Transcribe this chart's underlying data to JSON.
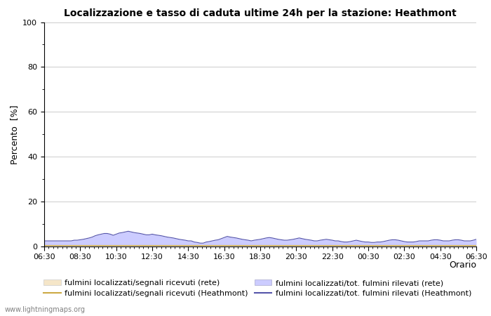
{
  "title": "Localizzazione e tasso di caduta ultime 24h per la stazione: Heathmont",
  "ylabel": "Percento  [%]",
  "xlabel": "Orario",
  "ylim": [
    0,
    100
  ],
  "yticks": [
    0,
    20,
    40,
    60,
    80,
    100
  ],
  "yticks_minor": [
    10,
    30,
    50,
    70,
    90
  ],
  "x_labels": [
    "06:30",
    "08:30",
    "10:30",
    "12:30",
    "14:30",
    "16:30",
    "18:30",
    "20:30",
    "22:30",
    "00:30",
    "02:30",
    "04:30",
    "06:30"
  ],
  "n_points": 145,
  "fill_rete_color": "#f5e6c8",
  "fill_heathmont_color": "#ccccff",
  "line_rete_color": "#ccaa44",
  "line_heathmont_color": "#5555aa",
  "bg_color": "#ffffff",
  "grid_color": "#cccccc",
  "watermark": "www.lightningmaps.org",
  "legend": [
    {
      "label": "fulmini localizzati/segnali ricevuti (rete)",
      "type": "fill",
      "color": "#f5e6c8",
      "edgecolor": "#cccccc"
    },
    {
      "label": "fulmini localizzati/segnali ricevuti (Heathmont)",
      "type": "line",
      "color": "#ccaa44"
    },
    {
      "label": "fulmini localizzati/tot. fulmini rilevati (rete)",
      "type": "fill",
      "color": "#ccccff",
      "edgecolor": "#aaaacc"
    },
    {
      "label": "fulmini localizzati/tot. fulmini rilevati (Heathmont)",
      "type": "line",
      "color": "#5555aa"
    }
  ],
  "heathmont_tot_data": [
    2.5,
    2.5,
    2.5,
    2.5,
    2.5,
    2.5,
    2.5,
    2.5,
    2.5,
    2.5,
    2.8,
    2.8,
    3.0,
    3.2,
    3.5,
    3.8,
    4.2,
    4.8,
    5.2,
    5.5,
    5.8,
    5.8,
    5.5,
    5.0,
    5.5,
    6.0,
    6.2,
    6.5,
    6.8,
    6.5,
    6.2,
    6.0,
    5.8,
    5.5,
    5.2,
    5.2,
    5.5,
    5.2,
    5.0,
    4.8,
    4.5,
    4.2,
    4.0,
    3.8,
    3.5,
    3.2,
    3.0,
    2.8,
    2.5,
    2.5,
    2.0,
    1.8,
    1.5,
    1.5,
    2.0,
    2.2,
    2.5,
    2.8,
    3.0,
    3.5,
    4.0,
    4.5,
    4.2,
    4.0,
    3.8,
    3.5,
    3.2,
    3.0,
    2.8,
    2.5,
    2.8,
    3.0,
    3.2,
    3.5,
    3.8,
    4.0,
    3.8,
    3.5,
    3.2,
    3.0,
    2.8,
    2.8,
    3.0,
    3.2,
    3.5,
    3.8,
    3.5,
    3.2,
    3.0,
    2.8,
    2.5,
    2.5,
    2.8,
    3.0,
    3.2,
    3.0,
    2.8,
    2.5,
    2.5,
    2.2,
    2.0,
    2.0,
    2.2,
    2.5,
    2.8,
    2.5,
    2.2,
    2.0,
    2.0,
    1.8,
    1.8,
    2.0,
    2.0,
    2.2,
    2.5,
    2.8,
    3.0,
    3.0,
    2.8,
    2.5,
    2.2,
    2.0,
    2.0,
    2.0,
    2.2,
    2.5,
    2.5,
    2.5,
    2.5,
    2.8,
    3.0,
    3.0,
    2.8,
    2.5,
    2.5,
    2.5,
    2.8,
    3.0,
    3.0,
    2.8,
    2.5,
    2.5,
    2.5,
    2.8,
    3.2
  ],
  "rete_tot_data": [
    0.5,
    0.5,
    0.5,
    0.5,
    0.5,
    0.5,
    0.5,
    0.5,
    0.5,
    0.5,
    0.5,
    0.5,
    0.5,
    0.5,
    0.5,
    0.5,
    0.5,
    0.5,
    0.5,
    0.5,
    0.5,
    0.5,
    0.5,
    0.5,
    0.5,
    0.5,
    0.5,
    0.5,
    0.5,
    0.5,
    0.5,
    0.5,
    0.5,
    0.5,
    0.5,
    0.5,
    0.5,
    0.5,
    0.5,
    0.5,
    0.5,
    0.5,
    0.5,
    0.5,
    0.5,
    0.5,
    0.5,
    0.5,
    0.5,
    0.5,
    0.5,
    0.5,
    0.5,
    0.5,
    0.5,
    0.5,
    0.5,
    0.5,
    0.5,
    0.5,
    0.5,
    0.5,
    0.5,
    0.5,
    0.5,
    0.5,
    0.5,
    0.5,
    0.5,
    0.5,
    0.5,
    0.5,
    0.5,
    0.5,
    0.5,
    0.5,
    0.5,
    0.5,
    0.5,
    0.5,
    0.5,
    0.5,
    0.5,
    0.5,
    0.5,
    0.5,
    0.5,
    0.5,
    0.5,
    0.5,
    0.5,
    0.5,
    0.5,
    0.5,
    0.5,
    0.5,
    0.5,
    0.5,
    0.5,
    0.5,
    0.5,
    0.5,
    0.5,
    0.5,
    0.5,
    0.5,
    0.5,
    0.5,
    0.5,
    0.5,
    0.5,
    0.5,
    0.5,
    0.5,
    0.5,
    0.5,
    0.5,
    0.5,
    0.5,
    0.5,
    0.5,
    0.5,
    0.5,
    0.5,
    0.5,
    0.5,
    0.5,
    0.5,
    0.5,
    0.5,
    0.5,
    0.5,
    0.5,
    0.5,
    0.5,
    0.5,
    0.5,
    0.5,
    0.5,
    0.5,
    0.5,
    0.5,
    0.5,
    0.5,
    0.5
  ]
}
